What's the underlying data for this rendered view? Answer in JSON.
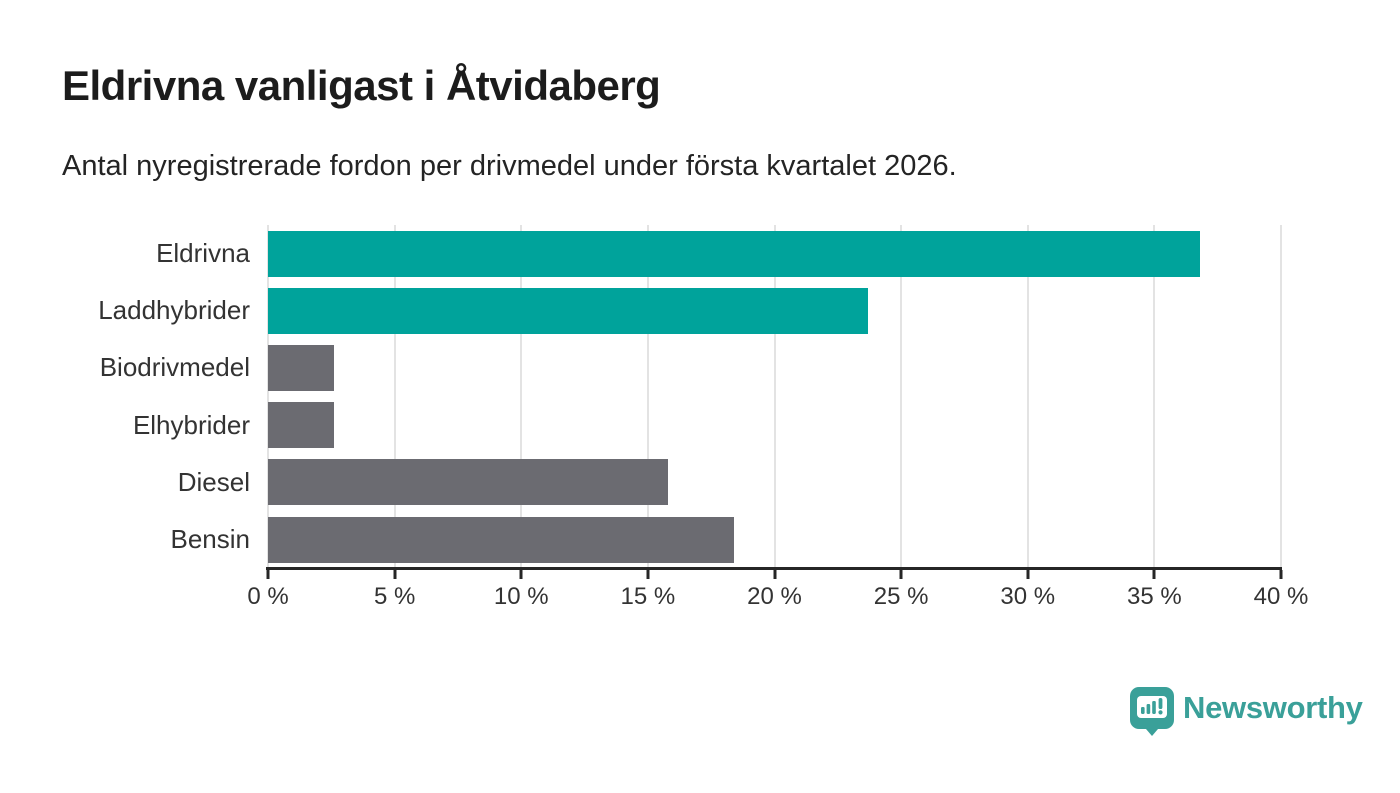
{
  "chart_data": {
    "type": "bar",
    "orientation": "horizontal",
    "title": "Eldrivna vanligast i Åtvidaberg",
    "subtitle": "Antal nyregistrerade fordon per drivmedel under första kvartalet 2026.",
    "categories": [
      "Eldrivna",
      "Laddhybrider",
      "Biodrivmedel",
      "Elhybrider",
      "Diesel",
      "Bensin"
    ],
    "values": [
      36.8,
      23.7,
      2.6,
      2.6,
      15.8,
      18.4
    ],
    "unit": "%",
    "xlim": [
      0,
      40
    ],
    "x_tick_values": [
      0,
      5,
      10,
      15,
      20,
      25,
      30,
      35,
      40
    ],
    "x_tick_labels": [
      "0 %",
      "5 %",
      "10 %",
      "15 %",
      "20 %",
      "25 %",
      "30 %",
      "35 %",
      "40 %"
    ],
    "bar_colors": [
      "#00a39b",
      "#00a39b",
      "#6b6b71",
      "#6b6b71",
      "#6b6b71",
      "#6b6b71"
    ],
    "grid": true,
    "legend": false
  },
  "branding": {
    "logo_text": "Newsworthy",
    "logo_color": "#3aa099",
    "logo_icon": "newsworthy-bubble-chart-icon"
  },
  "colors": {
    "accent_teal": "#00a39b",
    "bar_gray": "#6b6b71",
    "title_text": "#1c1c1c",
    "axis_text": "#333333",
    "gridline": "#e3e3e3",
    "axis_line": "#262626"
  }
}
